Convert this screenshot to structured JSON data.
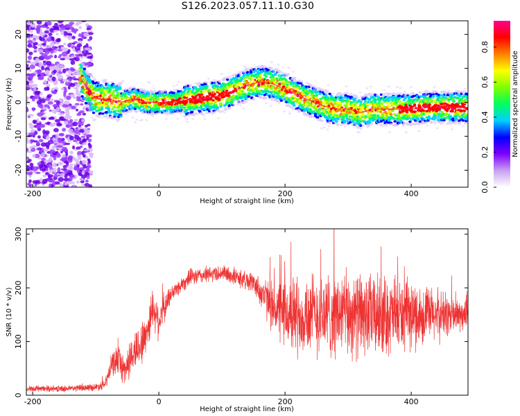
{
  "title": "S126.2023.057.11.10.G30",
  "chart_data": [
    {
      "type": "heatmap",
      "xlabel": "Height of straight line (km)",
      "ylabel": "Frequency (Hz)",
      "xlim": [
        -210,
        490
      ],
      "ylim": [
        -25,
        24
      ],
      "xticks": [
        -200,
        0,
        200,
        400
      ],
      "yticks": [
        -20,
        -10,
        0,
        10,
        20
      ],
      "grid": false,
      "colorbar": {
        "label": "Normalized spectral amplitude",
        "range": [
          0,
          0.95
        ],
        "ticks": [
          "0.0",
          "0.2",
          "0.4",
          "0.6",
          "0.8"
        ],
        "colormap": [
          "#ffffff",
          "#c8a0f0",
          "#8000ff",
          "#0000ff",
          "#00d0ff",
          "#00ff60",
          "#80ff00",
          "#ffff00",
          "#ff8000",
          "#ff0000",
          "#ff0090"
        ]
      },
      "ridge": {
        "height_km": [
          -130,
          -120,
          -110,
          -100,
          -80,
          -60,
          -40,
          -20,
          0,
          20,
          40,
          60,
          80,
          100,
          120,
          140,
          160,
          180,
          200,
          220,
          240,
          260,
          280,
          300,
          320,
          340,
          360,
          380,
          400,
          420,
          440,
          460,
          490
        ],
        "frequency_hz": [
          10,
          6,
          3,
          1,
          1,
          0,
          1,
          0,
          0,
          0,
          0.5,
          1,
          1.5,
          2,
          3.5,
          5,
          6,
          5.5,
          4,
          2,
          0.5,
          -1,
          -2,
          -2,
          -3,
          -2,
          -2,
          -2,
          -2,
          -1.5,
          -1.5,
          -1.5,
          -1.5
        ]
      },
      "noise_region_km": [
        -210,
        -115
      ]
    },
    {
      "type": "line",
      "xlabel": "Height of straight line (km)",
      "ylabel": "SNR (10 * v/v)",
      "xlim": [
        -210,
        490
      ],
      "ylim": [
        0,
        310
      ],
      "xticks": [
        -200,
        0,
        200,
        400
      ],
      "yticks": [
        0,
        100,
        200,
        300
      ],
      "grid": false,
      "series": [
        {
          "color": "#ee3333",
          "envelope": {
            "height_km": [
              -210,
              -150,
              -100,
              -85,
              -75,
              -65,
              -55,
              -40,
              -25,
              -15,
              -10,
              0,
              20,
              50,
              100,
              150,
              180,
              200,
              230,
              260,
              300,
              350,
              400,
              450,
              490
            ],
            "mean": [
              12,
              12,
              15,
              20,
              55,
              70,
              45,
              80,
              100,
              135,
              165,
              140,
              190,
              220,
              228,
              210,
              165,
              150,
              152,
              150,
              150,
              148,
              148,
              150,
              148
            ],
            "spread": [
              6,
              7,
              8,
              12,
              25,
              35,
              35,
              45,
              50,
              45,
              45,
              45,
              18,
              18,
              18,
              22,
              55,
              80,
              90,
              95,
              95,
              90,
              75,
              55,
              30
            ]
          }
        }
      ]
    }
  ]
}
